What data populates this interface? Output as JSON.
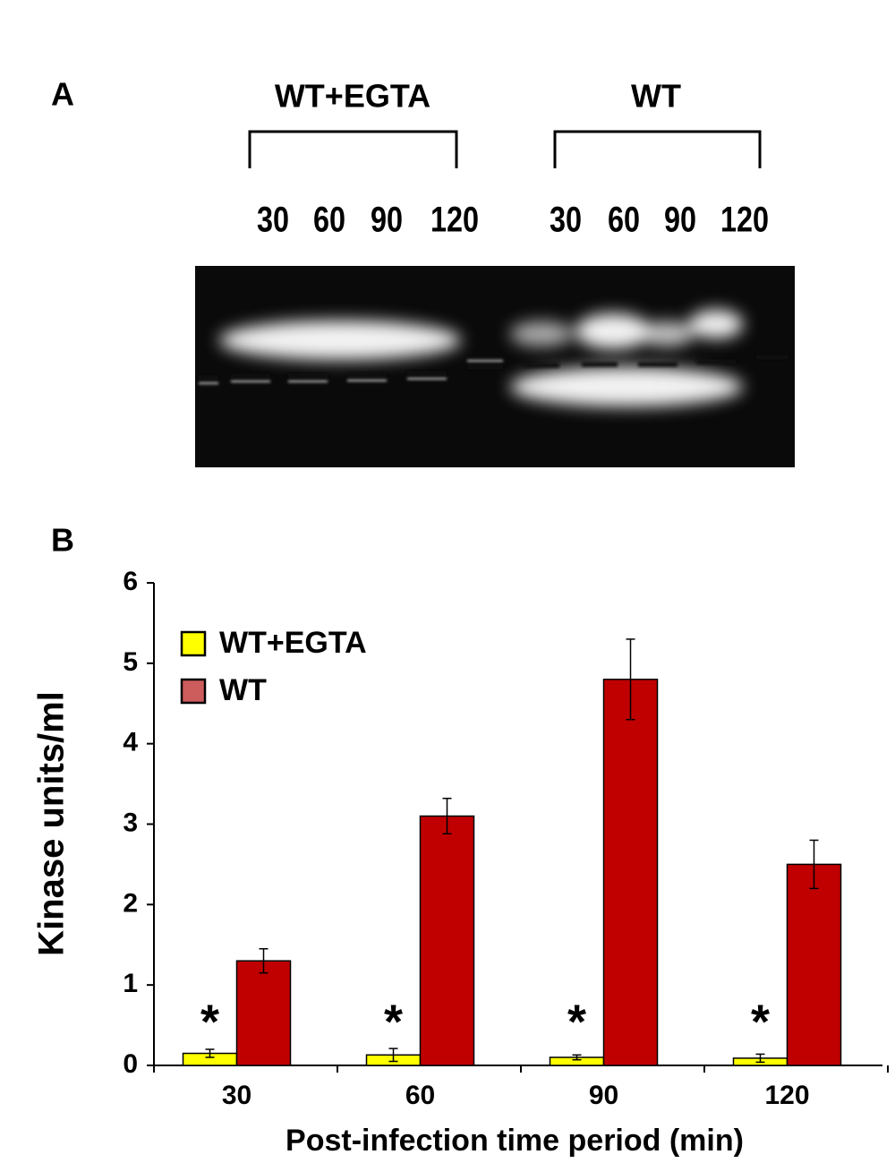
{
  "figure_a": {
    "label": "A",
    "groups": [
      {
        "label": "WT+EGTA",
        "lanes": [
          "30",
          "60",
          "90",
          "120"
        ]
      },
      {
        "label": "WT",
        "lanes": [
          "30",
          "60",
          "90",
          "120"
        ]
      }
    ]
  },
  "chart_data": {
    "type": "bar",
    "panel_label": "B",
    "y_label": "Kinase units/ml",
    "x_label": "Post-infection time period (min)",
    "categories": [
      "30",
      "60",
      "90",
      "120"
    ],
    "series": [
      {
        "name": "WT+EGTA",
        "color": "#ffff00",
        "values": [
          0.15,
          0.13,
          0.1,
          0.09
        ],
        "errors": [
          0.05,
          0.08,
          0.03,
          0.05
        ]
      },
      {
        "name": "WT",
        "color": "#c00000",
        "values": [
          1.3,
          3.1,
          4.8,
          2.5
        ],
        "errors": [
          0.15,
          0.22,
          0.5,
          0.3
        ]
      }
    ],
    "annotations": [
      "*",
      "*",
      "*",
      "*"
    ],
    "ylim": [
      0,
      6
    ],
    "yticks": [
      0,
      1,
      2,
      3,
      4,
      5,
      6
    ],
    "legend": "upper left"
  }
}
